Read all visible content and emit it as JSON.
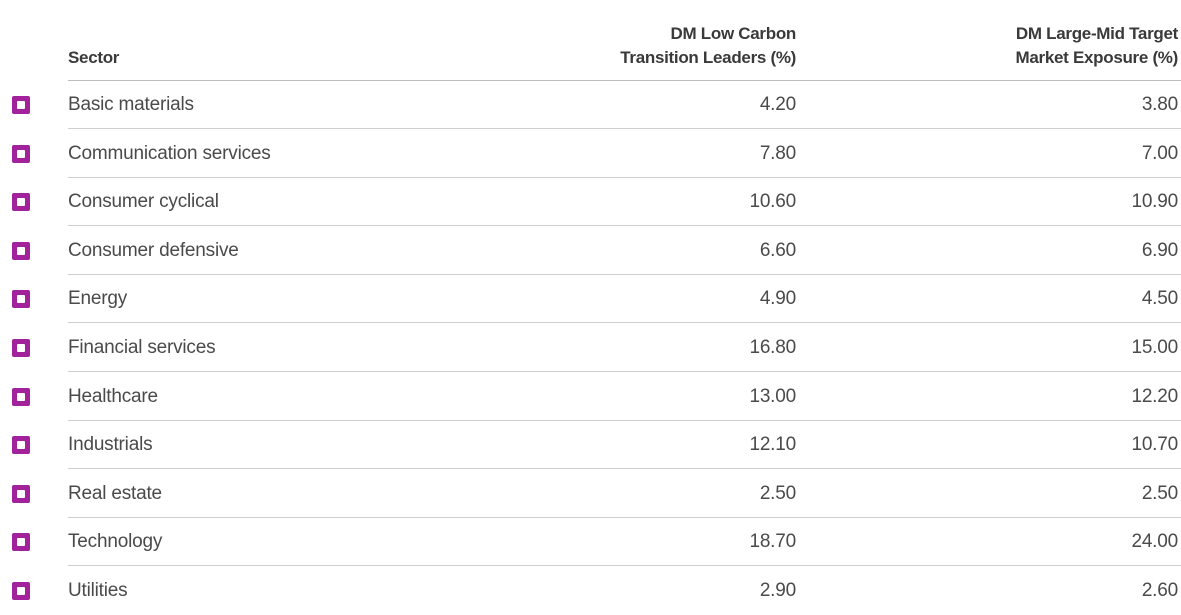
{
  "table": {
    "headers": [
      "Sector",
      "DM Low Carbon\nTransition Leaders (%)",
      "DM Large-Mid Target\nMarket Exposure (%)"
    ],
    "rows": [
      [
        "Basic materials",
        "4.20",
        "3.80"
      ],
      [
        "Communication services",
        "7.80",
        "7.00"
      ],
      [
        "Consumer cyclical",
        "10.60",
        "10.90"
      ],
      [
        "Consumer defensive",
        "6.60",
        "6.90"
      ],
      [
        "Energy",
        "4.90",
        "4.50"
      ],
      [
        "Financial services",
        "16.80",
        "15.00"
      ],
      [
        "Healthcare",
        "13.00",
        "12.20"
      ],
      [
        "Industrials",
        "12.10",
        "10.70"
      ],
      [
        "Real estate",
        "2.50",
        "2.50"
      ],
      [
        "Technology",
        "18.70",
        "24.00"
      ],
      [
        "Utilities",
        "2.90",
        "2.60"
      ]
    ]
  }
}
